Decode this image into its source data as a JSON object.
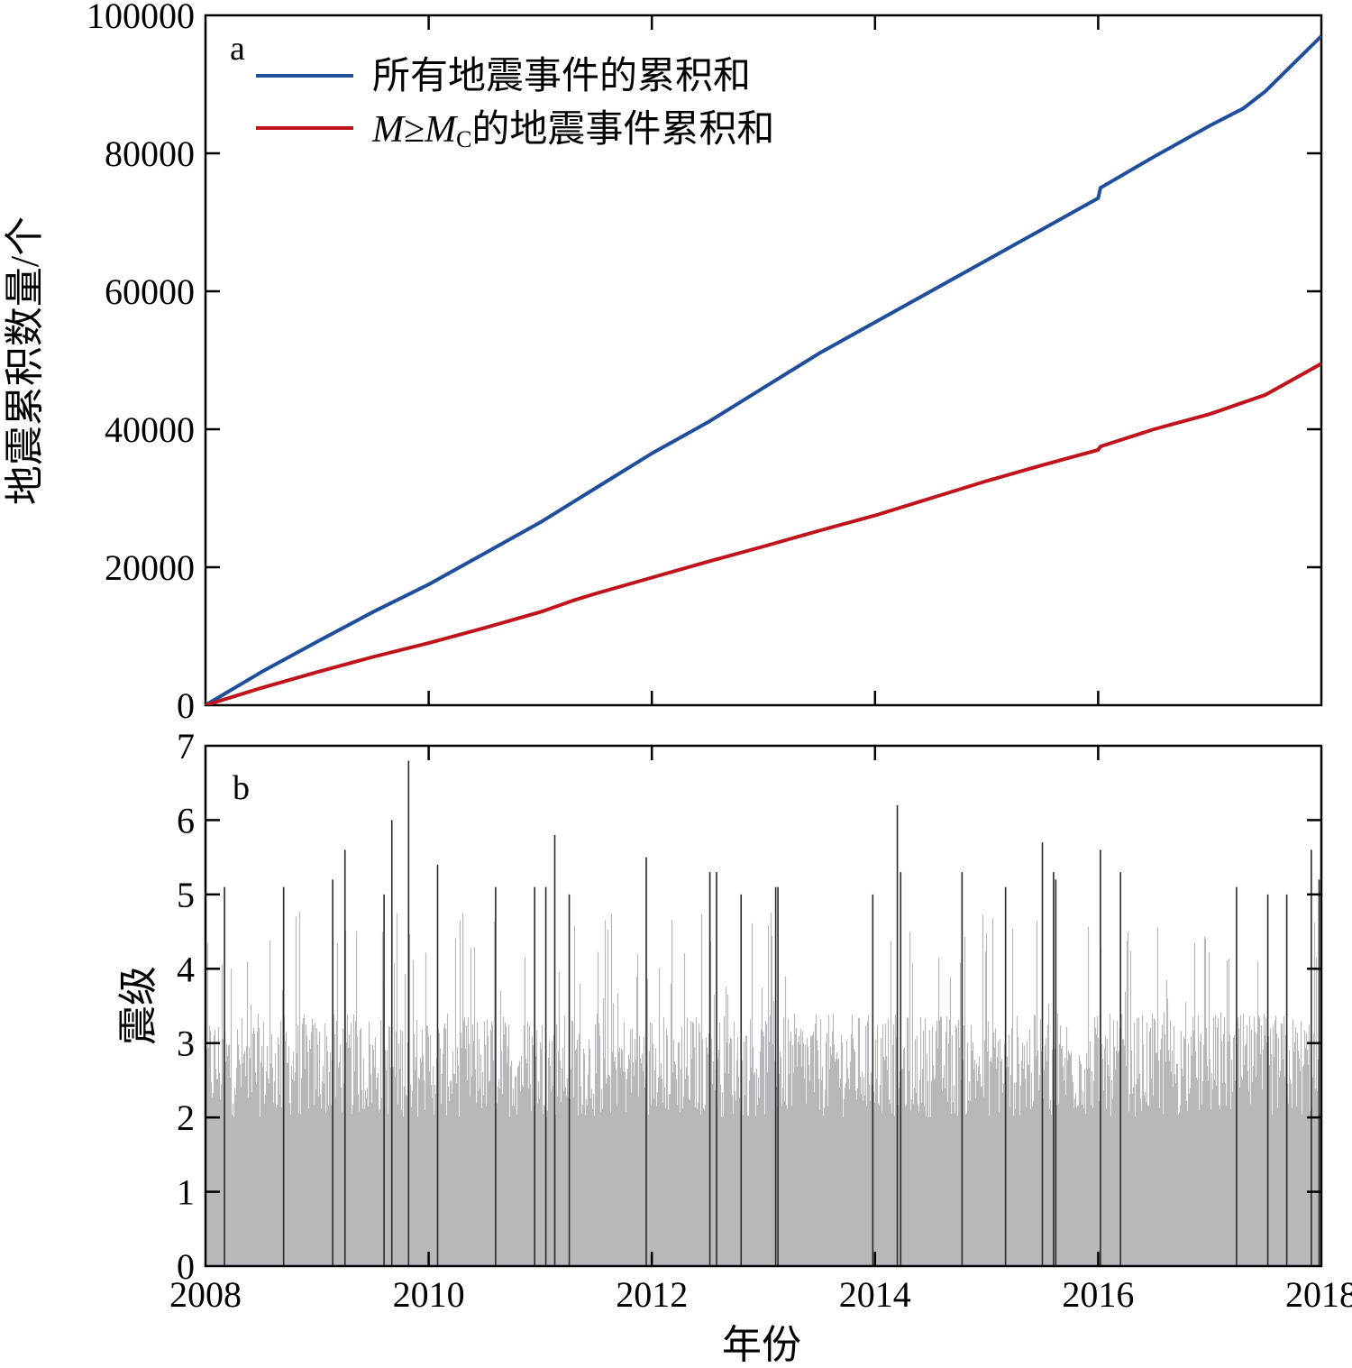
{
  "chart_data": [
    {
      "type": "line",
      "panel_label": "a",
      "ylabel": "地震累积数量/个",
      "xlim": [
        2008,
        2018
      ],
      "ylim": [
        0,
        100000
      ],
      "x_ticks": [
        "2008",
        "2010",
        "2012",
        "2014",
        "2016",
        "2018"
      ],
      "y_ticks": [
        "0",
        "20000",
        "40000",
        "60000",
        "80000",
        "100000"
      ],
      "legend_position": "top-left",
      "series": [
        {
          "name": "所有地震事件的累积和",
          "color": "#1f4e9c",
          "x": [
            2008.0,
            2008.5,
            2009.0,
            2009.5,
            2010.0,
            2010.5,
            2011.0,
            2011.3,
            2011.5,
            2012.0,
            2012.5,
            2013.0,
            2013.5,
            2014.0,
            2014.5,
            2015.0,
            2015.5,
            2016.0,
            2016.02,
            2016.5,
            2017.0,
            2017.3,
            2017.5,
            2018.0
          ],
          "y": [
            0,
            4800,
            9200,
            13500,
            17500,
            22000,
            26500,
            29500,
            31500,
            36500,
            41000,
            46000,
            51000,
            55500,
            60000,
            64500,
            69000,
            73500,
            75000,
            79500,
            84000,
            86500,
            89000,
            97000
          ]
        },
        {
          "name": "M≥Mc的地震事件累积和",
          "color": "#c0141c",
          "x": [
            2008.0,
            2008.5,
            2009.0,
            2009.5,
            2010.0,
            2010.5,
            2011.0,
            2011.3,
            2011.5,
            2012.0,
            2012.5,
            2013.0,
            2013.5,
            2014.0,
            2014.5,
            2015.0,
            2015.5,
            2016.0,
            2016.02,
            2016.5,
            2017.0,
            2017.5,
            2018.0
          ],
          "y": [
            0,
            2500,
            4800,
            7000,
            9000,
            11200,
            13500,
            15200,
            16200,
            18500,
            20800,
            23000,
            25300,
            27500,
            30000,
            32500,
            34800,
            37000,
            37500,
            40000,
            42200,
            45000,
            49500
          ]
        }
      ],
      "legend": {
        "entries": [
          {
            "label": "所有地震事件的累积和",
            "color": "#1f4e9c"
          },
          {
            "label_prefix": "M",
            "label_geq": "≥",
            "label_m": "M",
            "label_sub": "C",
            "label_suffix": "的地震事件累积和",
            "color": "#c0141c"
          }
        ]
      }
    },
    {
      "type": "bar",
      "panel_label": "b",
      "ylabel": "震级",
      "xlabel": "年份",
      "xlim": [
        2008,
        2018
      ],
      "ylim": [
        0,
        7
      ],
      "x_ticks": [
        "2008",
        "2010",
        "2012",
        "2014",
        "2016",
        "2018"
      ],
      "y_ticks": [
        "0",
        "1",
        "2",
        "3",
        "4",
        "5",
        "6",
        "7"
      ],
      "bar_color": "#b8b8bc",
      "large_event_color": "#2a2a2a",
      "background_band": {
        "min": 2.0,
        "max": 3.4
      },
      "large_events": {
        "x": [
          2008.17,
          2008.7,
          2009.14,
          2009.25,
          2009.6,
          2009.67,
          2009.82,
          2010.08,
          2010.6,
          2010.95,
          2011.05,
          2011.13,
          2011.26,
          2011.95,
          2012.52,
          2012.58,
          2012.8,
          2013.11,
          2013.13,
          2013.98,
          2014.2,
          2014.23,
          2014.78,
          2015.17,
          2015.5,
          2015.6,
          2015.62,
          2016.02,
          2016.2,
          2017.24,
          2017.52,
          2017.69,
          2017.91,
          2017.98
        ],
        "magnitude": [
          5.1,
          5.1,
          5.2,
          5.6,
          5.0,
          6.0,
          6.8,
          5.4,
          5.1,
          5.1,
          5.1,
          5.8,
          5.0,
          5.5,
          5.3,
          5.3,
          5.0,
          5.1,
          5.1,
          5.0,
          6.2,
          5.3,
          5.3,
          5.1,
          5.7,
          5.3,
          5.2,
          5.6,
          5.3,
          5.1,
          5.0,
          5.0,
          5.6,
          5.2
        ]
      }
    }
  ]
}
